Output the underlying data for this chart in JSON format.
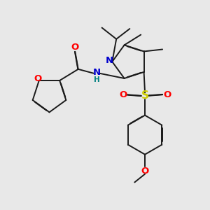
{
  "bg_color": "#e8e8e8",
  "bond_color": "#1a1a1a",
  "bond_width": 1.4,
  "colors": {
    "N": "#0000cc",
    "O": "#ff0000",
    "S": "#cccc00",
    "H": "#008080",
    "C": "#1a1a1a"
  },
  "fs": 9.5,
  "fs_small": 7.5,
  "dbo": 0.013
}
